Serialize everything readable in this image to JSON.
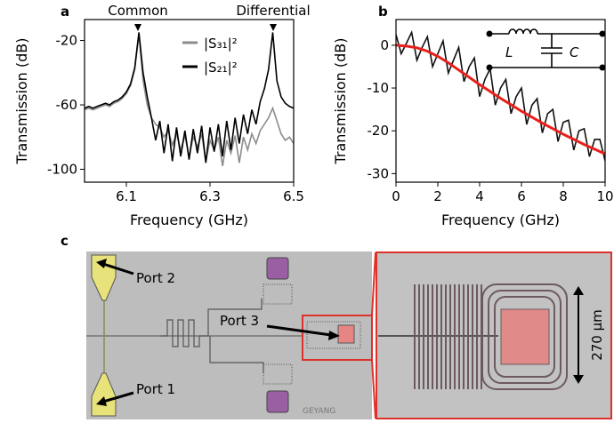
{
  "chart_data": [
    {
      "type": "line",
      "panel_label": "a",
      "xlabel": "Frequency (GHz)",
      "ylabel": "Transmission (dB)",
      "annotations": [
        "Common",
        "Differential"
      ],
      "xlim": [
        6.0,
        6.5
      ],
      "xticks": [
        6.1,
        6.3,
        6.5
      ],
      "ylim": [
        -108,
        -7
      ],
      "yticks": [
        -100,
        -60,
        -20
      ],
      "x": [
        6.0,
        6.01,
        6.02,
        6.03,
        6.04,
        6.05,
        6.06,
        6.07,
        6.08,
        6.09,
        6.1,
        6.11,
        6.12,
        6.13,
        6.14,
        6.15,
        6.16,
        6.17,
        6.18,
        6.19,
        6.2,
        6.21,
        6.22,
        6.23,
        6.24,
        6.25,
        6.26,
        6.27,
        6.28,
        6.29,
        6.3,
        6.31,
        6.32,
        6.33,
        6.34,
        6.35,
        6.36,
        6.37,
        6.38,
        6.39,
        6.4,
        6.41,
        6.42,
        6.43,
        6.44,
        6.45,
        6.46,
        6.47,
        6.48,
        6.49,
        6.5
      ],
      "series": [
        {
          "name": "|S₃₁|²",
          "color": "#8c8c8c",
          "values": [
            -63,
            -62,
            -63,
            -62,
            -61,
            -60,
            -61,
            -59,
            -58,
            -56,
            -53,
            -48,
            -38,
            -16,
            -45,
            -60,
            -68,
            -72,
            -74,
            -80,
            -76,
            -85,
            -78,
            -88,
            -79,
            -92,
            -80,
            -86,
            -78,
            -95,
            -82,
            -88,
            -80,
            -98,
            -82,
            -90,
            -79,
            -96,
            -80,
            -88,
            -78,
            -84,
            -76,
            -72,
            -68,
            -62,
            -70,
            -78,
            -82,
            -80,
            -84
          ]
        },
        {
          "name": "|S₂₁|²",
          "color": "#000000",
          "values": [
            -62,
            -61,
            -62,
            -61,
            -60,
            -59,
            -60,
            -58,
            -57,
            -55,
            -52,
            -47,
            -37,
            -15,
            -40,
            -55,
            -68,
            -82,
            -70,
            -90,
            -72,
            -95,
            -74,
            -92,
            -76,
            -94,
            -75,
            -90,
            -73,
            -96,
            -74,
            -89,
            -72,
            -92,
            -70,
            -88,
            -68,
            -84,
            -66,
            -78,
            -63,
            -72,
            -58,
            -50,
            -38,
            -15,
            -45,
            -55,
            -59,
            -61,
            -62
          ]
        }
      ]
    },
    {
      "type": "line",
      "panel_label": "b",
      "xlabel": "Frequency (GHz)",
      "ylabel": "Transmission (dB)",
      "annotations": [
        "L",
        "C"
      ],
      "xlim": [
        0,
        10
      ],
      "xticks": [
        0,
        2,
        4,
        6,
        8,
        10
      ],
      "ylim": [
        -32,
        6
      ],
      "yticks": [
        -30,
        -20,
        -10,
        0
      ],
      "series": [
        {
          "color": "#111111",
          "x": [
            0,
            0.25,
            0.5,
            0.75,
            1,
            1.25,
            1.5,
            1.75,
            2,
            2.25,
            2.5,
            2.75,
            3,
            3.25,
            3.5,
            3.75,
            4,
            4.25,
            4.5,
            4.75,
            5,
            5.25,
            5.5,
            5.75,
            6,
            6.25,
            6.5,
            6.75,
            7,
            7.25,
            7.5,
            7.75,
            8,
            8.25,
            8.5,
            8.75,
            9,
            9.25,
            9.5,
            9.75,
            10
          ],
          "values": [
            2.5,
            -2,
            0.5,
            3,
            -3.5,
            -0.5,
            2,
            -5,
            -2,
            1,
            -6.5,
            -3.5,
            -0.5,
            -8.5,
            -5,
            -3,
            -12,
            -8,
            -5.5,
            -14,
            -10,
            -8,
            -16,
            -12,
            -10,
            -18.5,
            -14,
            -12.5,
            -20.5,
            -16,
            -15,
            -22.5,
            -18,
            -17.5,
            -24.5,
            -20,
            -19.5,
            -26,
            -22,
            -22,
            -27
          ]
        },
        {
          "color": "#e8201c",
          "x": [
            0,
            0.5,
            1,
            1.5,
            2,
            2.5,
            3,
            3.5,
            4,
            4.5,
            5,
            5.5,
            6,
            6.5,
            7,
            7.5,
            8,
            8.5,
            9,
            9.5,
            10
          ],
          "values": [
            0,
            -0.2,
            -0.6,
            -1.4,
            -2.6,
            -4.1,
            -5.8,
            -7.5,
            -9.2,
            -10.8,
            -12.4,
            -13.9,
            -15.4,
            -16.8,
            -18.2,
            -19.5,
            -20.8,
            -22,
            -23.2,
            -24.3,
            -25.4
          ]
        }
      ]
    }
  ],
  "micrograph": {
    "panel_label": "c",
    "ports": [
      "Port 2",
      "Port 1",
      "Port 3"
    ],
    "scale_bar": "270 µm",
    "chip_text": "GEYANG"
  }
}
